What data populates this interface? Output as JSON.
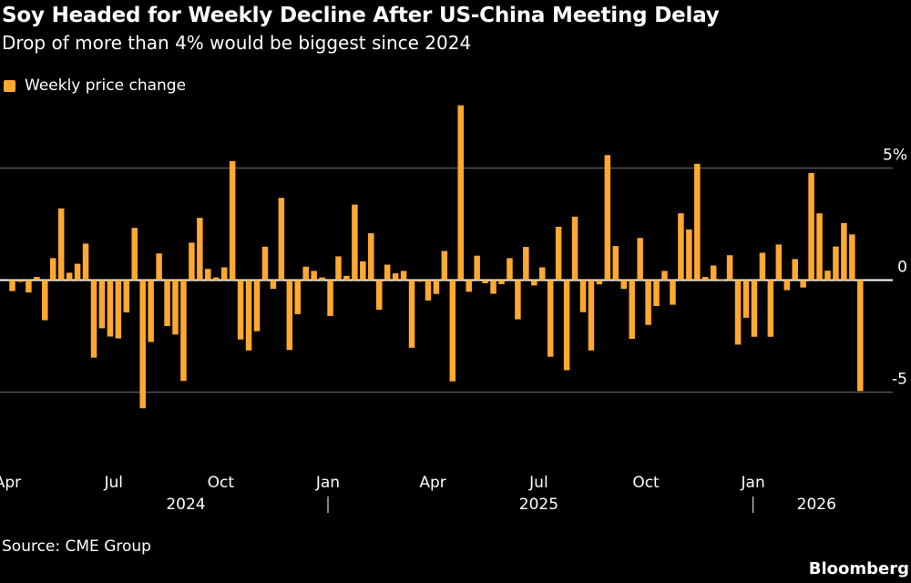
{
  "title": "Soy Headed for Weekly Decline After US-China Meeting Delay",
  "subtitle": "Drop of more than 4% would be biggest since 2024",
  "source": "Source: CME Group",
  "brand": "Bloomberg",
  "chart_data": {
    "type": "bar",
    "legend": [
      {
        "name": "Weekly price change",
        "color": "#FFA832"
      }
    ],
    "legend_placement": "top-left",
    "series": [
      {
        "name": "Weekly price change",
        "color": "#FFA832",
        "values": [
          -0.49,
          -0.08,
          -0.55,
          0.14,
          -1.79,
          0.98,
          3.2,
          0.33,
          0.73,
          1.63,
          -3.46,
          -2.15,
          -2.52,
          -2.6,
          -1.44,
          2.33,
          -5.72,
          -2.76,
          1.19,
          -2.05,
          -2.43,
          -4.5,
          1.67,
          2.78,
          0.5,
          0.12,
          0.57,
          5.31,
          -2.65,
          -3.14,
          -2.28,
          1.49,
          -0.39,
          3.67,
          -3.12,
          -1.52,
          0.6,
          0.41,
          0.12,
          -1.6,
          1.06,
          0.19,
          3.37,
          0.84,
          2.09,
          -1.32,
          0.69,
          0.3,
          0.41,
          -3.02,
          -0.07,
          -0.91,
          -0.62,
          1.3,
          -4.52,
          7.8,
          -0.52,
          1.09,
          -0.14,
          -0.61,
          -0.18,
          0.98,
          -1.75,
          1.48,
          -0.24,
          0.57,
          -3.42,
          2.38,
          -4.02,
          2.83,
          -1.43,
          -3.14,
          -0.19,
          5.58,
          1.52,
          -0.39,
          -2.62,
          1.88,
          -2.0,
          -1.16,
          0.41,
          -1.1,
          2.98,
          2.26,
          5.19,
          0.14,
          0.65,
          0.03,
          1.11,
          -2.88,
          -1.68,
          -2.53,
          1.22,
          -2.53,
          1.59,
          -0.45,
          0.94,
          -0.33,
          4.78,
          2.98,
          0.42,
          1.5,
          2.55,
          2.04,
          -4.95
        ]
      }
    ],
    "x_start": "2024-04-05",
    "x_frequency": "weekly",
    "ylim": [
      -6.5,
      8
    ],
    "y_ticks": [
      {
        "value": 5,
        "label": "5%"
      },
      {
        "value": 0,
        "label": "0"
      },
      {
        "value": -5,
        "label": "-5"
      }
    ],
    "x_ticks": [
      {
        "date": "2024-04",
        "label": "Apr"
      },
      {
        "date": "2024-07",
        "label": "Jul"
      },
      {
        "date": "2024-10",
        "label": "Oct"
      },
      {
        "date": "2025-01",
        "label": "Jan"
      },
      {
        "date": "2025-04",
        "label": "Apr"
      },
      {
        "date": "2025-07",
        "label": "Jul"
      },
      {
        "date": "2025-10",
        "label": "Oct"
      },
      {
        "date": "2026-01",
        "label": "Jan"
      }
    ],
    "year_labels": [
      "2024",
      "2025",
      "2026"
    ],
    "grid": true
  }
}
